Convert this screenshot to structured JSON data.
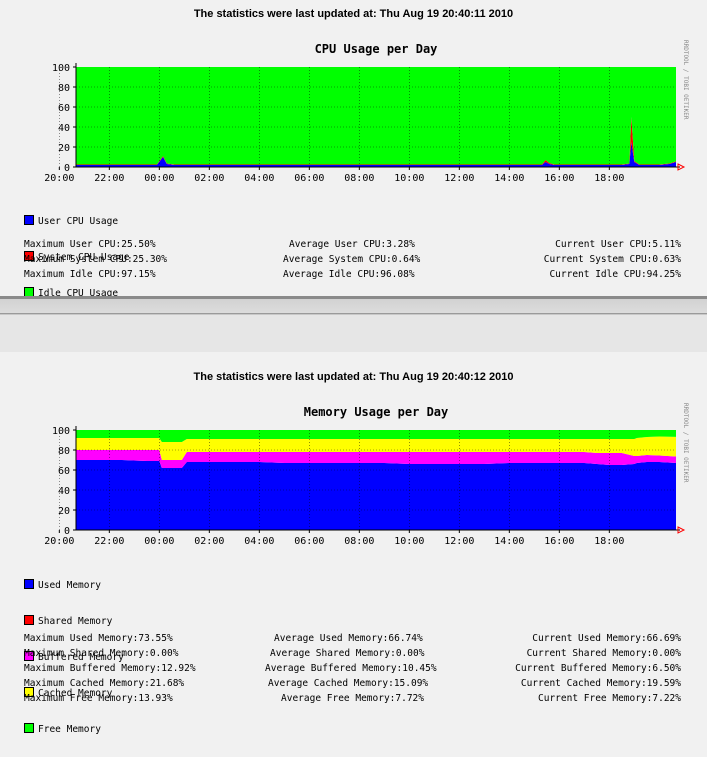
{
  "cpu_panel": {
    "updated_text": "The statistics were last updated at: Thu Aug 19 20:40:11 2010",
    "watermark": "RRDTOOL / TOBI OETIKER",
    "legend": [
      {
        "label": "User CPU Usage",
        "color": "#0000ff"
      },
      {
        "label": "System CPU Usage",
        "color": "#ff0000"
      },
      {
        "label": "Idle CPU Usage",
        "color": "#00ff00"
      }
    ],
    "stats": [
      [
        "Maximum User CPU:25.50%",
        "Average User CPU:3.28%",
        "Current User CPU:5.11%"
      ],
      [
        "Maximum System CPU:25.30%",
        "Average System CPU:0.64%",
        "Current System CPU:0.63%"
      ],
      [
        "Maximum Idle CPU:97.15%",
        "Average Idle CPU:96.08%",
        "Current Idle CPU:94.25%"
      ]
    ]
  },
  "mem_panel": {
    "updated_text": "The statistics were last updated at: Thu Aug 19 20:40:12 2010",
    "watermark": "RRDTOOL / TOBI OETIKER",
    "legend": [
      {
        "label": "Used Memory",
        "color": "#0000ff"
      },
      {
        "label": "Shared Memory",
        "color": "#ff0000"
      },
      {
        "label": "Buffered Memory",
        "color": "#ff00ff"
      },
      {
        "label": "Cached Memory",
        "color": "#ffff00"
      },
      {
        "label": "Free Memory",
        "color": "#00ff00"
      }
    ],
    "stats": [
      [
        "Maximum Used Memory:73.55%",
        "Average Used Memory:66.74%",
        "Current Used Memory:66.69%"
      ],
      [
        "Maximum Shared Memory:0.00%",
        "Average Shared Memory:0.00%",
        "Current Shared Memory:0.00%"
      ],
      [
        "Maximum Buffered Memory:12.92%",
        "Average Buffered Memory:10.45%",
        "Current Buffered Memory:6.50%"
      ],
      [
        "Maximum Cached Memory:21.68%",
        "Average Cached Memory:15.09%",
        "Current Cached Memory:19.59%"
      ],
      [
        "Maximum Free Memory:13.93%",
        "Average Free Memory:7.72%",
        "Current Free Memory:7.22%"
      ]
    ]
  },
  "chart_data": [
    {
      "type": "area",
      "title": "CPU Usage per Day",
      "xlabel": "",
      "ylabel": "",
      "ylim": [
        0,
        100
      ],
      "yticks": [
        "0",
        "20",
        "40",
        "60",
        "80",
        "100"
      ],
      "xticks": [
        "22:00",
        "00:00",
        "02:00",
        "04:00",
        "06:00",
        "08:00",
        "10:00",
        "12:00",
        "14:00",
        "16:00",
        "18:00",
        "20:00"
      ],
      "xrange_hours": [
        20.667,
        44.667
      ],
      "x_hours": [
        20.67,
        21.5,
        22.5,
        23.5,
        23.9,
        24.15,
        24.3,
        24.6,
        25.5,
        26.5,
        27.5,
        28.5,
        29.5,
        30.5,
        31.5,
        32.5,
        33.5,
        34.5,
        35.5,
        36.5,
        37.5,
        38.5,
        39.3,
        39.45,
        39.6,
        39.8,
        40.5,
        41.5,
        42.5,
        42.8,
        42.88,
        43.0,
        43.2,
        43.5,
        44.0,
        44.4,
        44.667
      ],
      "series": [
        {
          "name": "User CPU Usage",
          "color": "#0000ff",
          "values": [
            2,
            2,
            2,
            2,
            2,
            10,
            3,
            2,
            2,
            2,
            2,
            2,
            2,
            2,
            2,
            2,
            2,
            2,
            2,
            2,
            2,
            2,
            2,
            5,
            3,
            2,
            2,
            2,
            2,
            3,
            25,
            5,
            2,
            2,
            2,
            3,
            5
          ]
        },
        {
          "name": "System CPU Usage",
          "color": "#ff0000",
          "values": [
            0.5,
            0.5,
            0.5,
            0.5,
            0.5,
            1,
            0.5,
            0.5,
            0.5,
            0.5,
            0.5,
            0.5,
            0.5,
            0.5,
            0.5,
            0.5,
            0.5,
            0.5,
            0.5,
            0.5,
            0.5,
            0.5,
            0.5,
            2,
            1,
            0.5,
            0.5,
            0.5,
            0.5,
            0.5,
            25,
            1,
            0.5,
            0.5,
            0.5,
            0.5,
            0.6
          ]
        },
        {
          "name": "Idle CPU Usage",
          "color": "#00ff00",
          "values": [
            97.5,
            97.5,
            97.5,
            97.5,
            97.5,
            89,
            96.5,
            97.5,
            97.5,
            97.5,
            97.5,
            97.5,
            97.5,
            97.5,
            97.5,
            97.5,
            97.5,
            97.5,
            97.5,
            97.5,
            97.5,
            97.5,
            97.5,
            93,
            96,
            97.5,
            97.5,
            97.5,
            97.5,
            96.5,
            50,
            94,
            97.5,
            97.5,
            97.5,
            96.5,
            94.4
          ]
        }
      ]
    },
    {
      "type": "area",
      "title": "Memory Usage per Day",
      "xlabel": "",
      "ylabel": "",
      "ylim": [
        0,
        100
      ],
      "yticks": [
        "0",
        "20",
        "40",
        "60",
        "80",
        "100"
      ],
      "xticks": [
        "22:00",
        "00:00",
        "02:00",
        "04:00",
        "06:00",
        "08:00",
        "10:00",
        "12:00",
        "14:00",
        "16:00",
        "18:00",
        "20:00"
      ],
      "xrange_hours": [
        20.667,
        44.667
      ],
      "x_hours": [
        20.67,
        21.5,
        22.5,
        23.5,
        24.0,
        24.1,
        24.3,
        24.9,
        25.1,
        26.0,
        27.0,
        28.0,
        29.0,
        30.0,
        31.0,
        32.0,
        33.0,
        34.0,
        35.0,
        36.0,
        37.0,
        38.0,
        39.0,
        40.0,
        41.0,
        41.5,
        42.0,
        42.5,
        43.0,
        43.1,
        43.5,
        44.0,
        44.667
      ],
      "series": [
        {
          "name": "Used Memory",
          "color": "#0000ff",
          "values": [
            70,
            70,
            70,
            69,
            69,
            62,
            62,
            62,
            68,
            68,
            68,
            68,
            67,
            67,
            67,
            67,
            67,
            66,
            66,
            66,
            66,
            67,
            67,
            67,
            67,
            66,
            65,
            65,
            66,
            67,
            68,
            68,
            67
          ]
        },
        {
          "name": "Shared Memory",
          "color": "#ff0000",
          "values": [
            0,
            0,
            0,
            0,
            0,
            0,
            0,
            0,
            0,
            0,
            0,
            0,
            0,
            0,
            0,
            0,
            0,
            0,
            0,
            0,
            0,
            0,
            0,
            0,
            0,
            0,
            0,
            0,
            0,
            0,
            0,
            0,
            0
          ]
        },
        {
          "name": "Buffered Memory",
          "color": "#ff00ff",
          "values": [
            10,
            10,
            10,
            11,
            11,
            8,
            8,
            8,
            10,
            10,
            10,
            10,
            11,
            11,
            11,
            11,
            11,
            12,
            12,
            12,
            12,
            11,
            11,
            11,
            11,
            11,
            12,
            12,
            8,
            7,
            7,
            6.5,
            6.5
          ]
        },
        {
          "name": "Cached Memory",
          "color": "#ffff00",
          "values": [
            12,
            12,
            12,
            12,
            12,
            18,
            18,
            18,
            13,
            13,
            13,
            13,
            13,
            13,
            13,
            13,
            13,
            13,
            13,
            13,
            13,
            13,
            13,
            13,
            13,
            14,
            14,
            14,
            17,
            18,
            18,
            19,
            19.6
          ]
        },
        {
          "name": "Free Memory",
          "color": "#00ff00",
          "values": [
            8,
            8,
            8,
            8,
            8,
            12,
            12,
            12,
            9,
            9,
            9,
            9,
            9,
            9,
            9,
            9,
            9,
            9,
            9,
            9,
            9,
            9,
            9,
            9,
            9,
            9,
            9,
            9,
            9,
            8,
            7,
            6.5,
            6.9
          ]
        }
      ]
    }
  ]
}
